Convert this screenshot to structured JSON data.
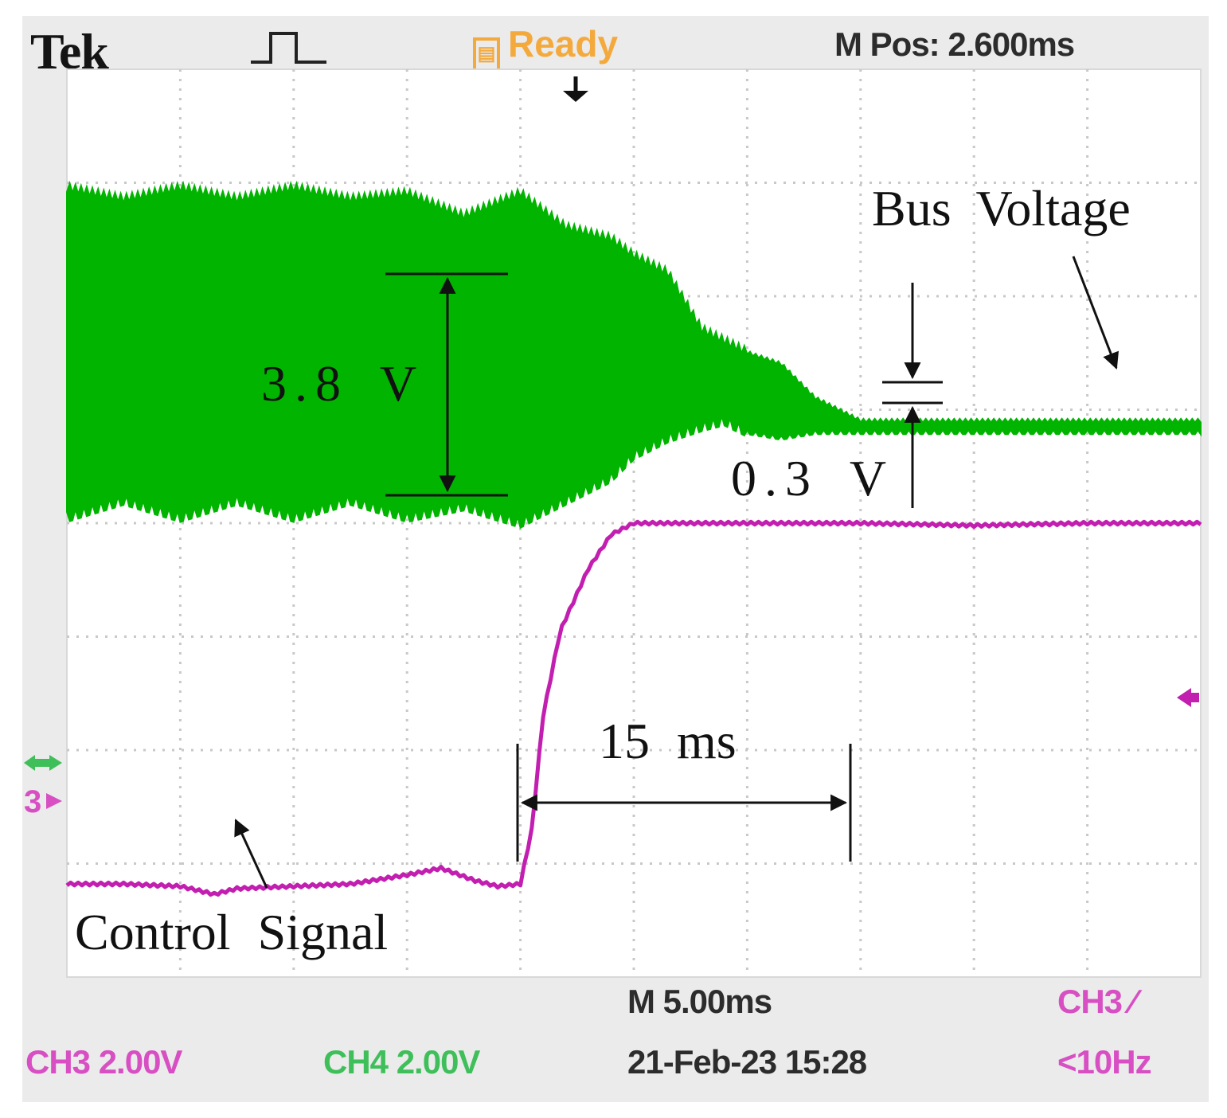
{
  "scope": {
    "brand": "Tek",
    "status": "Ready",
    "status_color": "#f4a93d",
    "m_pos": "M Pos: 2.600ms",
    "timebase": "M 5.00ms",
    "datetime": "21-Feb-23 15:28",
    "ch3_scale": "CH3  2.00V",
    "ch4_scale": "CH4  2.00V",
    "trigger_source": "CH3 ⁄",
    "trigger_freq": "<10Hz",
    "ch3_marker": "3",
    "icons": [
      "trigger-pulse-icon",
      "trigger-position-icon",
      "ch4-ground-marker-icon",
      "ch3-ground-marker-icon",
      "trigger-level-icon"
    ]
  },
  "chart_data": {
    "type": "line",
    "grid": true,
    "x_divisions": 10,
    "y_divisions": 8,
    "series": [
      {
        "name": "Bus Voltage",
        "color": "#00b400",
        "envelope": {
          "x_div": [
            0,
            0.5,
            1.0,
            1.5,
            2.0,
            2.5,
            3.0,
            3.5,
            4.0,
            4.4,
            4.8,
            5.0,
            5.3,
            5.6,
            5.8,
            6.0,
            6.3,
            6.6,
            7.0,
            7.5,
            8.0,
            9.0,
            10.0
          ],
          "upper_div": [
            6.95,
            6.85,
            6.95,
            6.85,
            6.95,
            6.85,
            6.9,
            6.7,
            6.9,
            6.6,
            6.5,
            6.35,
            6.2,
            5.7,
            5.6,
            5.5,
            5.4,
            5.1,
            4.9,
            4.9,
            4.9,
            4.9,
            4.9
          ],
          "lower_div": [
            4.05,
            4.2,
            4.05,
            4.2,
            4.05,
            4.2,
            4.05,
            4.15,
            4.0,
            4.2,
            4.4,
            4.6,
            4.75,
            4.85,
            4.9,
            4.8,
            4.75,
            4.8,
            4.8,
            4.8,
            4.8,
            4.8,
            4.8
          ]
        }
      },
      {
        "name": "Control Signal",
        "color": "#c21fb0",
        "x_div": [
          0,
          0.5,
          1.0,
          1.3,
          1.5,
          2.0,
          2.5,
          3.0,
          3.3,
          3.6,
          3.8,
          4.0,
          4.1,
          4.2,
          4.35,
          4.6,
          4.8,
          5.0,
          5.5,
          6.0,
          7.0,
          8.0,
          9.0,
          10.0
        ],
        "y_div": [
          0.82,
          0.82,
          0.8,
          0.73,
          0.78,
          0.8,
          0.82,
          0.9,
          0.96,
          0.85,
          0.8,
          0.82,
          1.3,
          2.3,
          3.05,
          3.6,
          3.9,
          4.0,
          4.0,
          4.0,
          4.0,
          3.98,
          4.0,
          4.0
        ]
      }
    ],
    "annotations": [
      {
        "id": "bus-label",
        "text": "Bus Voltage"
      },
      {
        "id": "amp-before",
        "text": "3.8 V"
      },
      {
        "id": "amp-after",
        "text": "0.3 V"
      },
      {
        "id": "response-time",
        "text": "15 ms"
      },
      {
        "id": "control-label",
        "text": "Control Signal"
      }
    ]
  }
}
